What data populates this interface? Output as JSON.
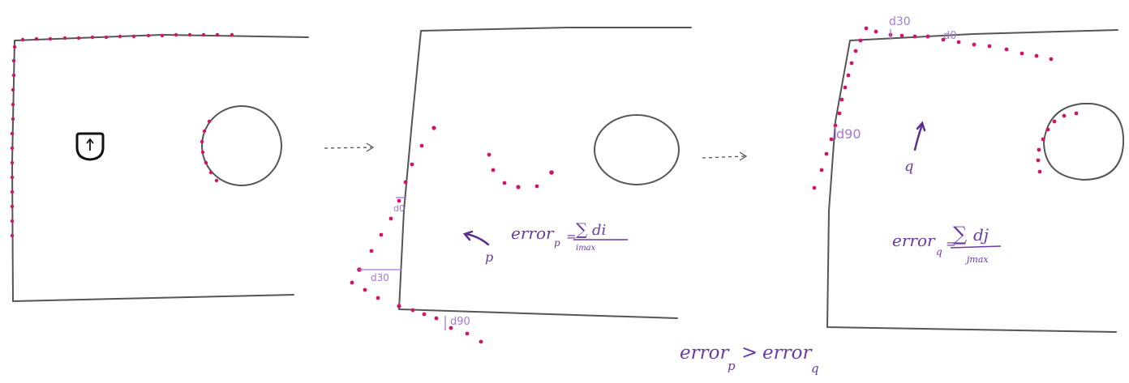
{
  "colors": {
    "wall": "#555555",
    "scan_point": "#d1146a",
    "ink": "#6b3aa3",
    "measure": "#a778d6"
  },
  "panel1": {
    "robot_icon": "robot-up-arrow-icon"
  },
  "panel2": {
    "pose_label": "p",
    "d0_label": "d0",
    "d30_label": "d30",
    "d90_label": "d90",
    "error_word": "error",
    "error_sub": "p",
    "equals": "=",
    "sum_sign": "∑",
    "numerator": "di",
    "denominator": "imax"
  },
  "panel3": {
    "pose_label": "q",
    "d0_label": "d0",
    "d30_label": "d30",
    "d90_label": "d90",
    "error_word": "error",
    "error_sub": "q",
    "equals": "=",
    "sum_sign": "∑",
    "numerator": "dj",
    "denominator": "jmax"
  },
  "comparison": {
    "left_word": "error",
    "left_sub": "p",
    "operator": ">",
    "right_word": "error",
    "right_sub": "q"
  }
}
